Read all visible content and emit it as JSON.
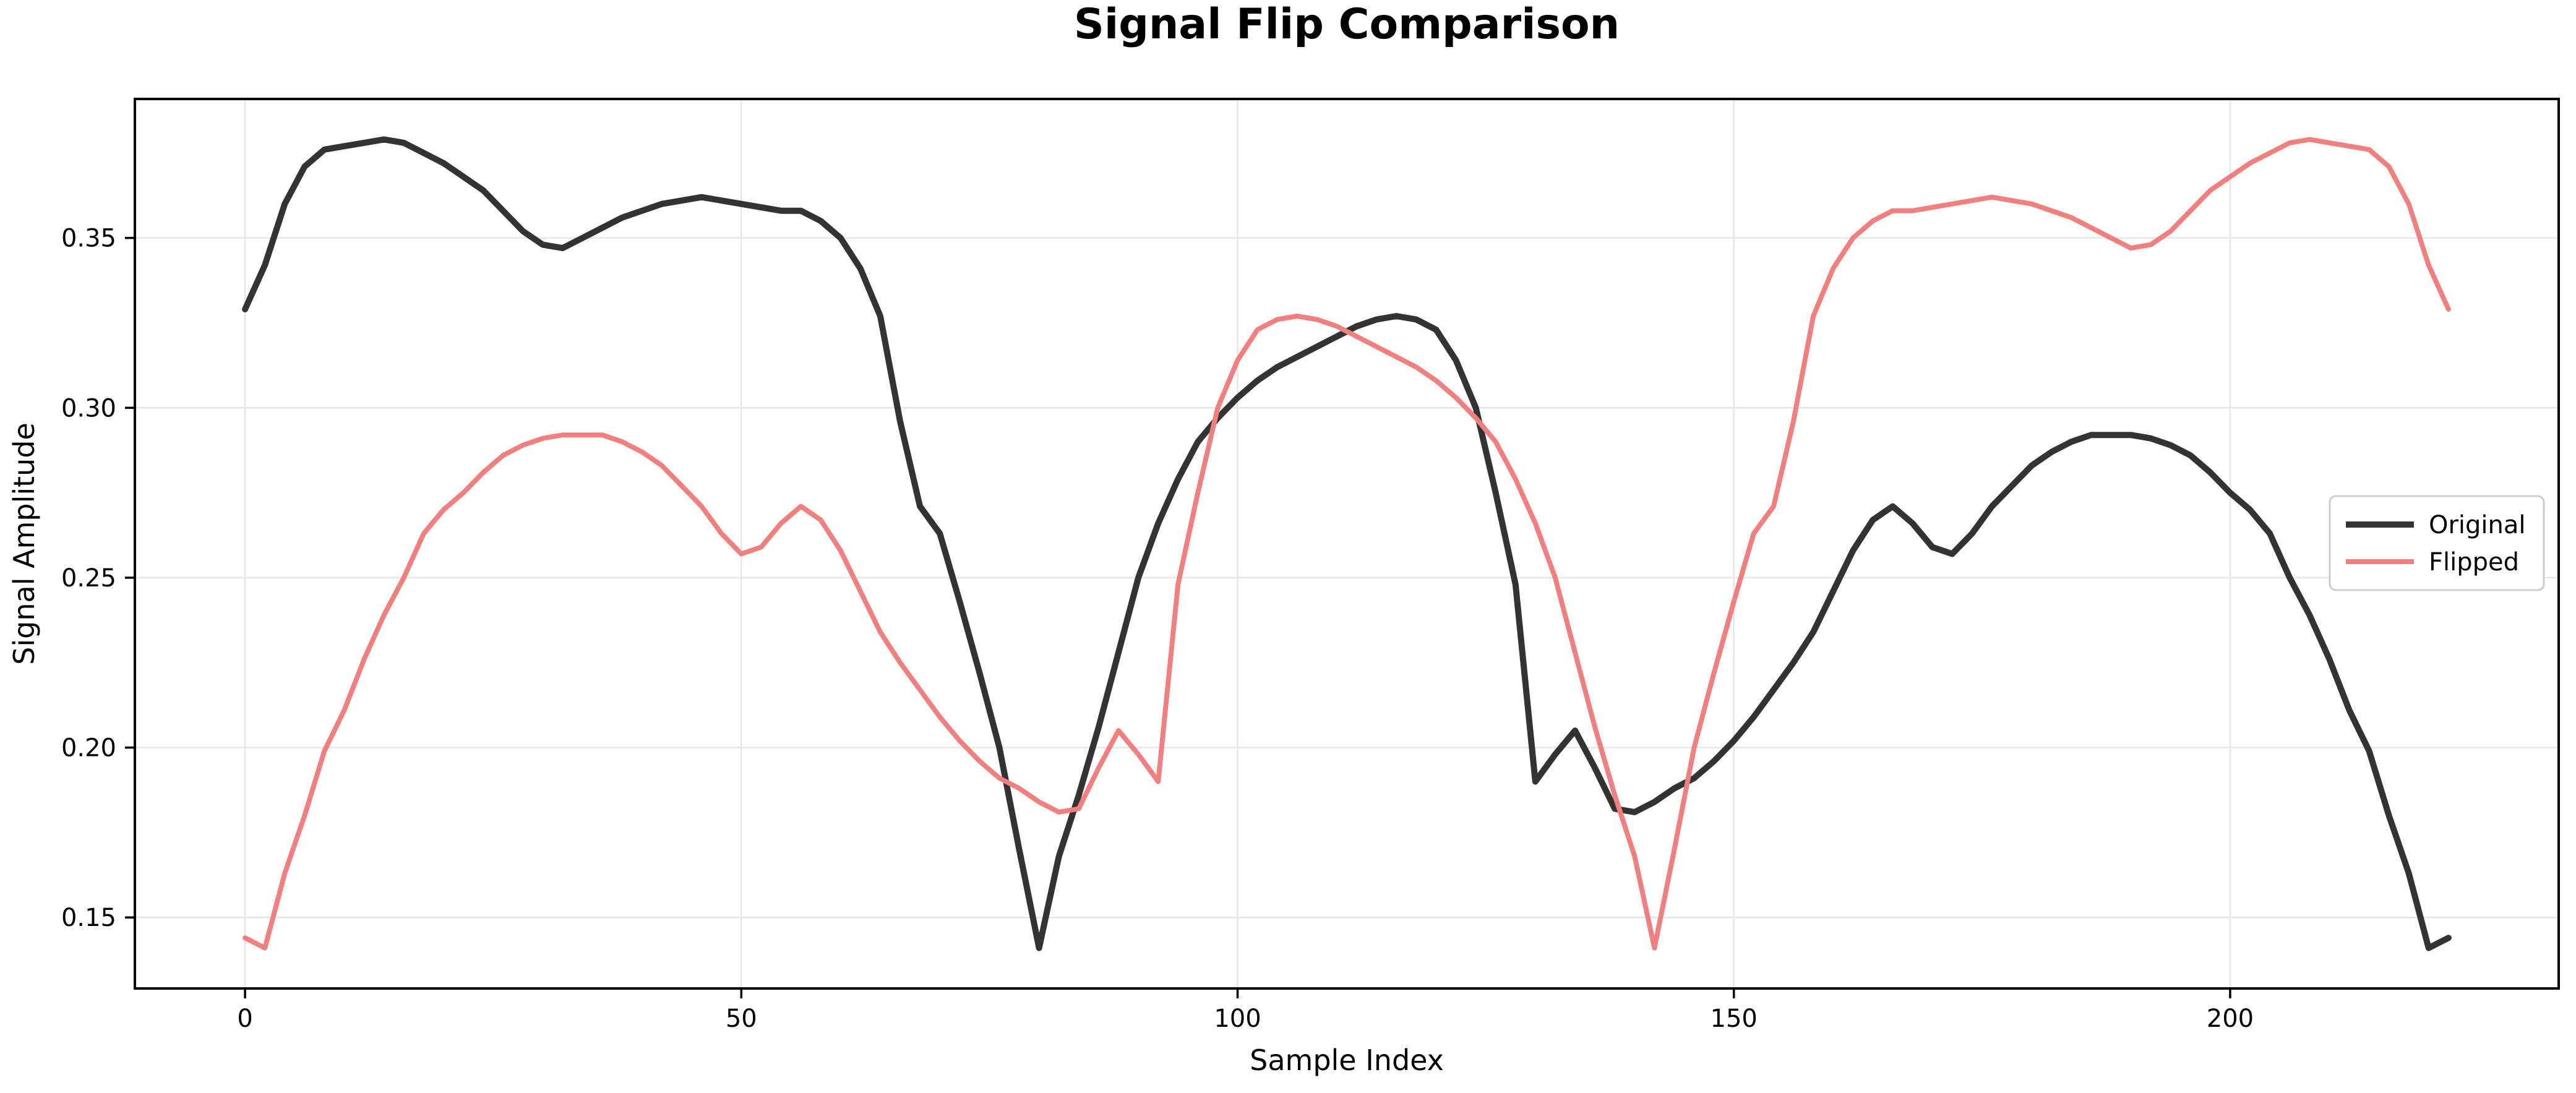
{
  "figure": {
    "title": "Signal Flip Comparison",
    "xlabel": "Sample Index",
    "ylabel": "Signal Amplitude",
    "background_color": "#ffffff",
    "spine_color": "#000000",
    "grid_color": "#e6e6e6"
  },
  "legend": {
    "entries": [
      {
        "label": "Original",
        "color": "#333333"
      },
      {
        "label": "Flipped",
        "color": "#f08080"
      }
    ]
  },
  "chart_data": {
    "type": "line",
    "title": "Signal Flip Comparison",
    "xlabel": "Sample Index",
    "ylabel": "Signal Amplitude",
    "grid": true,
    "legend_position": "center right",
    "xlim": [
      -11.1,
      233.1
    ],
    "ylim": [
      0.1291,
      0.3909
    ],
    "xticks": [
      0,
      50,
      100,
      150,
      200
    ],
    "xtick_labels": [
      "0",
      "50",
      "100",
      "150",
      "200"
    ],
    "yticks": [
      0.15,
      0.2,
      0.25,
      0.3,
      0.35
    ],
    "ytick_labels": [
      "0.15",
      "0.20",
      "0.25",
      "0.30",
      "0.35"
    ],
    "x_start": 0,
    "x_step": 2,
    "x": [
      0,
      2,
      4,
      6,
      8,
      10,
      12,
      14,
      16,
      18,
      20,
      22,
      24,
      26,
      28,
      30,
      32,
      34,
      36,
      38,
      40,
      42,
      44,
      46,
      48,
      50,
      52,
      54,
      56,
      58,
      60,
      62,
      64,
      66,
      68,
      70,
      72,
      74,
      76,
      78,
      80,
      82,
      84,
      86,
      88,
      90,
      92,
      94,
      96,
      98,
      100,
      102,
      104,
      106,
      108,
      110,
      112,
      114,
      116,
      118,
      120,
      122,
      124,
      126,
      128,
      130,
      132,
      134,
      136,
      138,
      140,
      142,
      144,
      146,
      148,
      150,
      152,
      154,
      156,
      158,
      160,
      162,
      164,
      166,
      168,
      170,
      172,
      174,
      176,
      178,
      180,
      182,
      184,
      186,
      188,
      190,
      192,
      194,
      196,
      198,
      200,
      202,
      204,
      206,
      208,
      210,
      212,
      214,
      216,
      218,
      220,
      222
    ],
    "series": [
      {
        "name": "Original",
        "color": "#333333",
        "linewidth": 10,
        "values": [
          0.329,
          0.342,
          0.36,
          0.371,
          0.376,
          0.377,
          0.378,
          0.379,
          0.378,
          0.375,
          0.372,
          0.368,
          0.364,
          0.358,
          0.352,
          0.348,
          0.347,
          0.35,
          0.353,
          0.356,
          0.358,
          0.36,
          0.361,
          0.362,
          0.361,
          0.36,
          0.359,
          0.358,
          0.358,
          0.355,
          0.35,
          0.341,
          0.327,
          0.296,
          0.271,
          0.263,
          0.243,
          0.222,
          0.2,
          0.17,
          0.141,
          0.168,
          0.186,
          0.206,
          0.228,
          0.25,
          0.266,
          0.279,
          0.29,
          0.297,
          0.303,
          0.308,
          0.312,
          0.315,
          0.318,
          0.321,
          0.324,
          0.326,
          0.327,
          0.326,
          0.323,
          0.314,
          0.3,
          0.275,
          0.248,
          0.19,
          0.198,
          0.205,
          0.194,
          0.182,
          0.181,
          0.184,
          0.188,
          0.191,
          0.196,
          0.202,
          0.209,
          0.217,
          0.225,
          0.234,
          0.246,
          0.258,
          0.267,
          0.271,
          0.266,
          0.259,
          0.257,
          0.263,
          0.271,
          0.277,
          0.283,
          0.287,
          0.29,
          0.292,
          0.292,
          0.292,
          0.291,
          0.289,
          0.286,
          0.281,
          0.275,
          0.27,
          0.263,
          0.25,
          0.239,
          0.226,
          0.211,
          0.199,
          0.18,
          0.163,
          0.141,
          0.144
        ]
      },
      {
        "name": "Flipped",
        "color": "#f08080",
        "linewidth": 8,
        "values": [
          0.144,
          0.141,
          0.163,
          0.18,
          0.199,
          0.211,
          0.226,
          0.239,
          0.25,
          0.263,
          0.27,
          0.275,
          0.281,
          0.286,
          0.289,
          0.291,
          0.292,
          0.292,
          0.292,
          0.29,
          0.287,
          0.283,
          0.277,
          0.271,
          0.263,
          0.257,
          0.259,
          0.266,
          0.271,
          0.267,
          0.258,
          0.246,
          0.234,
          0.225,
          0.217,
          0.209,
          0.202,
          0.196,
          0.191,
          0.188,
          0.184,
          0.181,
          0.182,
          0.194,
          0.205,
          0.198,
          0.19,
          0.248,
          0.275,
          0.3,
          0.314,
          0.323,
          0.326,
          0.327,
          0.326,
          0.324,
          0.321,
          0.318,
          0.315,
          0.312,
          0.308,
          0.303,
          0.297,
          0.29,
          0.279,
          0.266,
          0.25,
          0.228,
          0.206,
          0.186,
          0.168,
          0.141,
          0.17,
          0.2,
          0.222,
          0.243,
          0.263,
          0.271,
          0.296,
          0.327,
          0.341,
          0.35,
          0.355,
          0.358,
          0.358,
          0.359,
          0.36,
          0.361,
          0.362,
          0.361,
          0.36,
          0.358,
          0.356,
          0.353,
          0.35,
          0.347,
          0.348,
          0.352,
          0.358,
          0.364,
          0.368,
          0.372,
          0.375,
          0.378,
          0.379,
          0.378,
          0.377,
          0.376,
          0.371,
          0.36,
          0.342,
          0.329
        ]
      }
    ]
  }
}
